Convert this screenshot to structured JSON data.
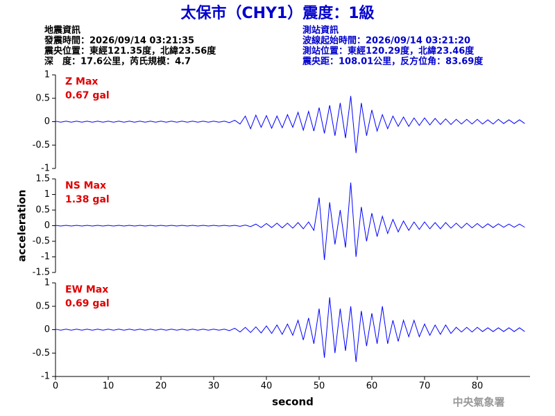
{
  "header": {
    "title": "太保市（CHY1）震度：1級",
    "left": [
      "地震資訊",
      "發震時間：2026/09/14 03:21:35",
      "震央位置：東經121.35度，北緯23.56度",
      "深　度：17.6公里，芮氏規模：4.7"
    ],
    "right": [
      "測站資訊",
      "波線起始時間：2026/09/14 03:21:20",
      "測站位置：東經120.29度，北緯23.46度",
      "震央距：108.01公里，反方位角：83.69度"
    ],
    "watermark": "中央氣象署"
  },
  "chart_data": [
    {
      "type": "line",
      "annotations": [
        "Z Max",
        "0.67 gal"
      ],
      "annotation_color": "#e00000",
      "xlim": [
        0,
        90
      ],
      "ylim": [
        -1,
        1
      ],
      "yticks": [
        -1,
        -0.5,
        0,
        0.5,
        1
      ],
      "x": [
        0,
        1,
        2,
        3,
        4,
        5,
        6,
        7,
        8,
        9,
        10,
        11,
        12,
        13,
        14,
        15,
        16,
        17,
        18,
        19,
        20,
        21,
        22,
        23,
        24,
        25,
        26,
        27,
        28,
        29,
        30,
        31,
        32,
        33,
        34,
        35,
        36,
        37,
        38,
        39,
        40,
        41,
        42,
        43,
        44,
        45,
        46,
        47,
        48,
        49,
        50,
        51,
        52,
        53,
        54,
        55,
        56,
        57,
        58,
        59,
        60,
        61,
        62,
        63,
        64,
        65,
        66,
        67,
        68,
        69,
        70,
        71,
        72,
        73,
        74,
        75,
        76,
        77,
        78,
        79,
        80,
        81,
        82,
        83,
        84,
        85,
        86,
        87,
        88,
        89
      ],
      "series": [
        {
          "color": "#0000ff",
          "values": [
            0.01,
            -0.01,
            0.01,
            -0.01,
            0.01,
            -0.01,
            0.01,
            -0.01,
            0.01,
            -0.01,
            0.01,
            -0.01,
            0.01,
            -0.01,
            0.01,
            -0.01,
            0.01,
            -0.01,
            0.01,
            -0.01,
            0.01,
            -0.01,
            0.01,
            -0.01,
            0.01,
            -0.01,
            0.01,
            -0.01,
            0.01,
            -0.01,
            0.01,
            -0.01,
            0.01,
            -0.02,
            0.03,
            -0.05,
            0.12,
            -0.15,
            0.14,
            -0.12,
            0.13,
            -0.14,
            0.12,
            -0.13,
            0.15,
            -0.12,
            0.2,
            -0.18,
            0.22,
            -0.2,
            0.3,
            -0.25,
            0.35,
            -0.3,
            0.4,
            -0.35,
            0.55,
            -0.67,
            0.4,
            -0.3,
            0.25,
            -0.2,
            0.15,
            -0.15,
            0.12,
            -0.1,
            0.1,
            -0.1,
            0.08,
            -0.08,
            0.08,
            -0.07,
            0.07,
            -0.06,
            0.06,
            -0.06,
            0.05,
            -0.05,
            0.05,
            -0.05,
            0.05,
            -0.05,
            0.04,
            -0.05,
            0.05,
            -0.04,
            0.04,
            -0.04,
            0.04,
            -0.04
          ]
        }
      ]
    },
    {
      "type": "line",
      "annotations": [
        "NS Max",
        "1.38 gal"
      ],
      "annotation_color": "#e00000",
      "ylabel": "acceleration",
      "xlim": [
        0,
        90
      ],
      "ylim": [
        -1.5,
        1.5
      ],
      "yticks": [
        -1.5,
        -1,
        -0.5,
        0,
        0.5,
        1,
        1.5
      ],
      "x": [
        0,
        1,
        2,
        3,
        4,
        5,
        6,
        7,
        8,
        9,
        10,
        11,
        12,
        13,
        14,
        15,
        16,
        17,
        18,
        19,
        20,
        21,
        22,
        23,
        24,
        25,
        26,
        27,
        28,
        29,
        30,
        31,
        32,
        33,
        34,
        35,
        36,
        37,
        38,
        39,
        40,
        41,
        42,
        43,
        44,
        45,
        46,
        47,
        48,
        49,
        50,
        51,
        52,
        53,
        54,
        55,
        56,
        57,
        58,
        59,
        60,
        61,
        62,
        63,
        64,
        65,
        66,
        67,
        68,
        69,
        70,
        71,
        72,
        73,
        74,
        75,
        76,
        77,
        78,
        79,
        80,
        81,
        82,
        83,
        84,
        85,
        86,
        87,
        88,
        89
      ],
      "series": [
        {
          "color": "#0000ff",
          "values": [
            0.01,
            -0.01,
            0.01,
            -0.01,
            0.01,
            -0.01,
            0.01,
            -0.01,
            0.01,
            -0.01,
            0.01,
            -0.01,
            0.01,
            -0.01,
            0.01,
            -0.01,
            0.01,
            -0.01,
            0.01,
            -0.01,
            0.01,
            -0.01,
            0.01,
            -0.01,
            0.01,
            -0.01,
            0.01,
            -0.01,
            0.01,
            -0.01,
            0.01,
            -0.01,
            0.01,
            -0.01,
            0.01,
            -0.02,
            0.02,
            -0.03,
            0.05,
            -0.06,
            0.07,
            -0.06,
            0.08,
            -0.07,
            0.08,
            -0.08,
            0.1,
            -0.1,
            0.12,
            -0.15,
            0.9,
            -1.1,
            0.75,
            -0.6,
            0.5,
            -0.7,
            1.38,
            -1.0,
            0.6,
            -0.5,
            0.4,
            -0.35,
            0.3,
            -0.25,
            0.2,
            -0.2,
            0.15,
            -0.15,
            0.12,
            -0.12,
            0.12,
            -0.1,
            0.1,
            -0.1,
            0.1,
            -0.08,
            0.08,
            -0.08,
            0.08,
            -0.07,
            0.07,
            -0.07,
            0.06,
            -0.06,
            0.06,
            -0.05,
            0.05,
            -0.05,
            0.05,
            -0.05
          ]
        }
      ]
    },
    {
      "type": "line",
      "annotations": [
        "EW Max",
        "0.69 gal"
      ],
      "annotation_color": "#e00000",
      "xlabel": "second",
      "xlim": [
        0,
        90
      ],
      "xticks": [
        0,
        10,
        20,
        30,
        40,
        50,
        60,
        70,
        80
      ],
      "ylim": [
        -1,
        1
      ],
      "yticks": [
        -1,
        -0.5,
        0,
        0.5,
        1
      ],
      "x": [
        0,
        1,
        2,
        3,
        4,
        5,
        6,
        7,
        8,
        9,
        10,
        11,
        12,
        13,
        14,
        15,
        16,
        17,
        18,
        19,
        20,
        21,
        22,
        23,
        24,
        25,
        26,
        27,
        28,
        29,
        30,
        31,
        32,
        33,
        34,
        35,
        36,
        37,
        38,
        39,
        40,
        41,
        42,
        43,
        44,
        45,
        46,
        47,
        48,
        49,
        50,
        51,
        52,
        53,
        54,
        55,
        56,
        57,
        58,
        59,
        60,
        61,
        62,
        63,
        64,
        65,
        66,
        67,
        68,
        69,
        70,
        71,
        72,
        73,
        74,
        75,
        76,
        77,
        78,
        79,
        80,
        81,
        82,
        83,
        84,
        85,
        86,
        87,
        88,
        89
      ],
      "series": [
        {
          "color": "#0000ff",
          "values": [
            0.01,
            -0.01,
            0.01,
            -0.01,
            0.01,
            -0.01,
            0.01,
            -0.01,
            0.01,
            -0.01,
            0.01,
            -0.01,
            0.01,
            -0.01,
            0.01,
            -0.01,
            0.01,
            -0.01,
            0.01,
            -0.01,
            0.01,
            -0.01,
            0.01,
            -0.01,
            0.01,
            -0.01,
            0.01,
            -0.01,
            0.01,
            -0.01,
            0.01,
            -0.01,
            0.01,
            -0.02,
            0.03,
            -0.05,
            0.05,
            -0.06,
            0.06,
            -0.07,
            0.08,
            -0.08,
            0.1,
            -0.1,
            0.12,
            -0.12,
            0.2,
            -0.22,
            0.25,
            -0.3,
            0.45,
            -0.6,
            0.69,
            -0.5,
            0.45,
            -0.45,
            0.5,
            -0.69,
            0.4,
            -0.35,
            0.35,
            -0.3,
            0.5,
            -0.3,
            0.2,
            -0.25,
            0.2,
            -0.15,
            0.2,
            -0.15,
            0.12,
            -0.12,
            0.1,
            -0.1,
            0.1,
            -0.08,
            0.05,
            -0.05,
            0.05,
            -0.05,
            0.05,
            -0.04,
            0.04,
            -0.04,
            0.04,
            -0.04,
            0.04,
            -0.04,
            0.04,
            -0.04
          ]
        }
      ]
    }
  ]
}
